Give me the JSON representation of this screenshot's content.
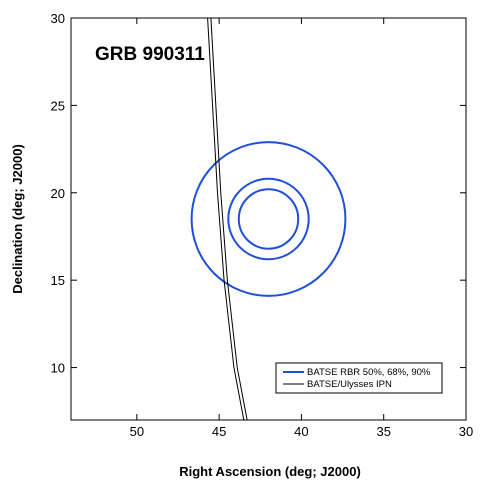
{
  "chart_data": {
    "type": "line",
    "title": "GRB 990311",
    "xlabel": "Right Ascension (deg; J2000)",
    "ylabel": "Declination (deg; J2000)",
    "xlim": [
      54,
      30
    ],
    "ylim": [
      7,
      30
    ],
    "x_reversed": true,
    "xticks": [
      50,
      45,
      40,
      35,
      30
    ],
    "yticks": [
      10,
      15,
      20,
      25,
      30
    ],
    "grid": false,
    "legend_position": "bottom-right",
    "colors": {
      "batse": "#1f4fd8",
      "ipn": "#000000"
    },
    "series": [
      {
        "name": "BATSE RBR 50%, 68%, 90%",
        "kind": "contours",
        "color": "#1f4fd8",
        "center": [
          42.0,
          18.5
        ],
        "contours": [
          {
            "level": "50%",
            "radius_dec_deg": 1.7
          },
          {
            "level": "68%",
            "radius_dec_deg": 2.3
          },
          {
            "level": "90%",
            "radius_dec_deg": 4.4
          }
        ]
      },
      {
        "name": "BATSE/Ulysses IPN",
        "kind": "annulus",
        "color": "#000000",
        "lines": [
          {
            "points": [
              [
                45.7,
                30
              ],
              [
                45.4,
                25
              ],
              [
                45.1,
                20
              ],
              [
                44.7,
                15
              ],
              [
                44.1,
                10
              ],
              [
                43.5,
                7
              ]
            ]
          },
          {
            "points": [
              [
                45.5,
                30
              ],
              [
                45.2,
                25
              ],
              [
                44.9,
                20
              ],
              [
                44.5,
                15
              ],
              [
                43.9,
                10
              ],
              [
                43.3,
                7
              ]
            ]
          }
        ]
      }
    ],
    "legend": {
      "entries": [
        {
          "label": "BATSE RBR 50%, 68%, 90%",
          "color": "#1f4fd8"
        },
        {
          "label": "BATSE/Ulysses IPN",
          "color": "#000000"
        }
      ]
    }
  }
}
